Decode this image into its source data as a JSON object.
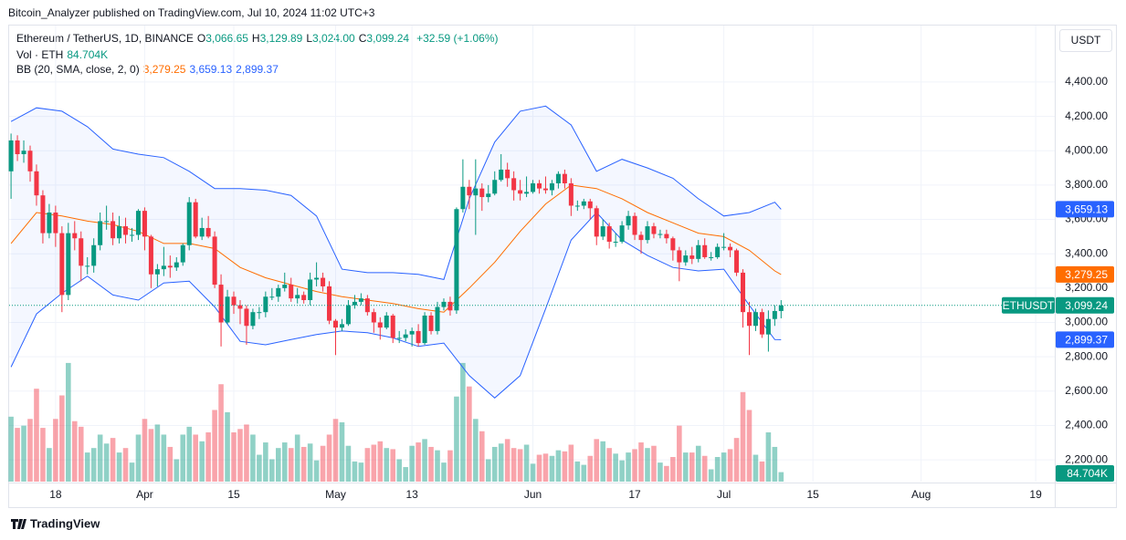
{
  "header": {
    "published": "Bitcoin_Analyzer published on TradingView.com, Jul 10, 2024 11:02 UTC+3",
    "footer": "TradingView"
  },
  "chart_data": {
    "type": "candlestick",
    "title": "Ethereum / TetherUS, 1D, BINANCE",
    "ohlc_legend": [
      {
        "label": "O",
        "value": "3,066.65"
      },
      {
        "label": "H",
        "value": "3,129.89"
      },
      {
        "label": "L",
        "value": "3,024.00"
      },
      {
        "label": "C",
        "value": "3,099.24"
      }
    ],
    "change": "+32.59 (+1.06%)",
    "currency": "USDT",
    "symbol": "ETHUSDT",
    "up_color": "#089981",
    "down_color": "#f23645",
    "open": [
      3880,
      4060,
      3980,
      4000,
      3880,
      3740,
      3520,
      3640,
      3520,
      3160,
      3520,
      3490,
      3330,
      3330,
      3450,
      3590,
      3590,
      3490,
      3560,
      3510,
      3510,
      3650,
      3500,
      3280,
      3310,
      3330,
      3320,
      3350,
      3450,
      3700,
      3500,
      3550,
      3500,
      3220,
      3000,
      3150,
      3100,
      3080,
      2980,
      3060,
      3060,
      3150,
      3150,
      3200,
      3220,
      3140,
      3160,
      3130,
      3250,
      3260,
      3210,
      3010,
      2970,
      2990,
      3100,
      3120,
      3140,
      3060,
      3000,
      2970,
      3040,
      2910,
      2910,
      2930,
      2950,
      2880,
      3040,
      2950,
      3090,
      3120,
      3070,
      3660,
      3790,
      3740,
      3780,
      3730,
      3750,
      3830,
      3890,
      3840,
      3770,
      3750,
      3760,
      3810,
      3780,
      3770,
      3810,
      3865,
      3810,
      3680,
      3680,
      3705,
      3665,
      3500,
      3560,
      3470,
      3470,
      3565,
      3620,
      3510,
      3480,
      3560,
      3515,
      3515,
      3490,
      3420,
      3350,
      3390,
      3370,
      3450,
      3380,
      3380,
      3440,
      3440,
      3420,
      3290,
      3060,
      2980,
      3060,
      2930,
      3020,
      3066.65
    ],
    "high": [
      4100,
      4090,
      4060,
      4030,
      3920,
      3770,
      3690,
      3680,
      3560,
      3580,
      3590,
      3530,
      3380,
      3490,
      3640,
      3680,
      3640,
      3620,
      3610,
      3550,
      3660,
      3670,
      3510,
      3340,
      3440,
      3390,
      3380,
      3460,
      3730,
      3720,
      3610,
      3620,
      3530,
      3280,
      3190,
      3180,
      3130,
      3100,
      3080,
      3090,
      3180,
      3200,
      3220,
      3290,
      3260,
      3200,
      3180,
      3290,
      3350,
      3290,
      3240,
      3020,
      3020,
      3130,
      3160,
      3170,
      3160,
      3080,
      3030,
      3060,
      3050,
      2950,
      2960,
      2970,
      2990,
      3060,
      3060,
      3120,
      3140,
      3150,
      3670,
      3950,
      3830,
      3950,
      3810,
      3800,
      3880,
      3980,
      3930,
      3880,
      3830,
      3850,
      3830,
      3830,
      3850,
      3830,
      3880,
      3890,
      3840,
      3710,
      3720,
      3720,
      3680,
      3600,
      3580,
      3520,
      3590,
      3650,
      3640,
      3530,
      3590,
      3580,
      3540,
      3540,
      3500,
      3440,
      3420,
      3440,
      3480,
      3490,
      3410,
      3460,
      3520,
      3460,
      3430,
      3310,
      3120,
      3080,
      3080,
      3070,
      3100,
      3129.89
    ],
    "low": [
      3720,
      3940,
      3930,
      3820,
      3680,
      3460,
      3490,
      3440,
      3060,
      3130,
      3420,
      3240,
      3280,
      3290,
      3420,
      3540,
      3450,
      3460,
      3460,
      3470,
      3480,
      3420,
      3200,
      3210,
      3270,
      3260,
      3300,
      3330,
      3420,
      3490,
      3480,
      3490,
      3200,
      2860,
      2990,
      3050,
      2990,
      2870,
      2960,
      3020,
      3030,
      3130,
      3120,
      3180,
      3120,
      3110,
      3110,
      3100,
      3210,
      3180,
      2990,
      2810,
      2950,
      2980,
      3080,
      3100,
      3040,
      2940,
      2900,
      2960,
      2880,
      2880,
      2890,
      2860,
      2860,
      2870,
      2930,
      2930,
      3070,
      3040,
      3050,
      3640,
      3660,
      3510,
      3650,
      3700,
      3740,
      3820,
      3790,
      3710,
      3710,
      3730,
      3750,
      3750,
      3750,
      3740,
      3780,
      3780,
      3620,
      3650,
      3660,
      3600,
      3450,
      3480,
      3430,
      3440,
      3460,
      3540,
      3480,
      3400,
      3460,
      3490,
      3490,
      3460,
      3360,
      3240,
      3330,
      3340,
      3350,
      3370,
      3360,
      3370,
      3420,
      3380,
      3270,
      2970,
      2810,
      2950,
      2910,
      2830,
      2980,
      3024
    ],
    "close": [
      4060,
      3980,
      4000,
      3880,
      3740,
      3520,
      3640,
      3520,
      3160,
      3520,
      3490,
      3330,
      3330,
      3450,
      3590,
      3590,
      3490,
      3560,
      3510,
      3510,
      3650,
      3500,
      3280,
      3310,
      3330,
      3320,
      3350,
      3450,
      3700,
      3500,
      3550,
      3500,
      3220,
      3000,
      3150,
      3100,
      3080,
      2980,
      3060,
      3060,
      3150,
      3150,
      3200,
      3220,
      3140,
      3160,
      3130,
      3250,
      3260,
      3210,
      3010,
      2970,
      2990,
      3100,
      3120,
      3140,
      3060,
      3000,
      2970,
      3040,
      2910,
      2910,
      2930,
      2950,
      2880,
      3040,
      2950,
      3090,
      3120,
      3070,
      3660,
      3790,
      3740,
      3780,
      3730,
      3750,
      3830,
      3890,
      3840,
      3770,
      3750,
      3760,
      3810,
      3780,
      3770,
      3810,
      3865,
      3810,
      3680,
      3680,
      3705,
      3665,
      3500,
      3560,
      3470,
      3470,
      3565,
      3620,
      3510,
      3480,
      3560,
      3515,
      3515,
      3490,
      3420,
      3350,
      3390,
      3370,
      3450,
      3380,
      3380,
      3440,
      3440,
      3420,
      3290,
      3060,
      2980,
      3060,
      2930,
      3020,
      3066.65,
      3099.24
    ],
    "volume": {
      "name": "Vol · ETH",
      "last_label": "84.704K",
      "ylim": [
        0,
        1100
      ],
      "values": [
        580,
        480,
        500,
        560,
        830,
        480,
        300,
        560,
        770,
        1060,
        540,
        490,
        260,
        300,
        420,
        340,
        390,
        260,
        300,
        170,
        420,
        560,
        470,
        510,
        420,
        310,
        200,
        420,
        490,
        420,
        360,
        440,
        640,
        870,
        620,
        440,
        470,
        510,
        420,
        240,
        350,
        200,
        300,
        350,
        300,
        420,
        310,
        340,
        190,
        320,
        420,
        560,
        530,
        320,
        180,
        170,
        300,
        330,
        360,
        300,
        290,
        200,
        130,
        320,
        350,
        380,
        310,
        280,
        170,
        280,
        760,
        1060,
        850,
        560,
        450,
        200,
        310,
        340,
        380,
        300,
        290,
        330,
        160,
        240,
        250,
        230,
        280,
        270,
        330,
        180,
        150,
        230,
        380,
        360,
        300,
        250,
        190,
        260,
        290,
        350,
        300,
        320,
        170,
        140,
        220,
        500,
        260,
        260,
        320,
        230,
        110,
        220,
        260,
        290,
        390,
        800,
        640,
        240,
        180,
        440,
        310,
        84.704
      ]
    },
    "bb": {
      "name": "BB (20, SMA, close, 2, 0)",
      "upper_color": "#2962ff",
      "middle_color": "#ff6d00",
      "upper_label": "3,659.13",
      "middle_label": "3,279.25",
      "lower_label": "2,899.37",
      "x": [
        0,
        4,
        8,
        12,
        16,
        20,
        24,
        28,
        32,
        36,
        40,
        44,
        48,
        52,
        56,
        60,
        64,
        68,
        72,
        76,
        80,
        84,
        88,
        92,
        96,
        100,
        104,
        108,
        112,
        116,
        120,
        121
      ],
      "upper": [
        4170,
        4250,
        4230,
        4140,
        4010,
        3980,
        3960,
        3880,
        3780,
        3780,
        3770,
        3740,
        3620,
        3310,
        3290,
        3290,
        3280,
        3250,
        3720,
        4050,
        4230,
        4260,
        4150,
        3880,
        3950,
        3900,
        3840,
        3720,
        3620,
        3640,
        3700,
        3659.13
      ],
      "middle": [
        3460,
        3640,
        3620,
        3590,
        3570,
        3530,
        3460,
        3460,
        3430,
        3320,
        3260,
        3220,
        3180,
        3150,
        3130,
        3110,
        3080,
        3060,
        3200,
        3350,
        3530,
        3690,
        3800,
        3780,
        3720,
        3640,
        3580,
        3520,
        3500,
        3420,
        3300,
        3279.25
      ],
      "lower": [
        2740,
        3050,
        3170,
        3270,
        3160,
        3130,
        3230,
        3240,
        3090,
        2890,
        2870,
        2900,
        2930,
        2950,
        2940,
        2910,
        2860,
        2880,
        2690,
        2560,
        2690,
        3080,
        3480,
        3640,
        3480,
        3390,
        3320,
        3300,
        3310,
        3100,
        2900,
        2899.37
      ]
    },
    "ylim": [
      2073,
      4729
    ],
    "yticks": [
      {
        "value": 2200,
        "label": "2,200.00"
      },
      {
        "value": 2400,
        "label": "2,400.00"
      },
      {
        "value": 2600,
        "label": "2,600.00"
      },
      {
        "value": 2800,
        "label": "2,800.00"
      },
      {
        "value": 3000,
        "label": "3,000.00"
      },
      {
        "value": 3200,
        "label": "3,200.00"
      },
      {
        "value": 3400,
        "label": "3,400.00"
      },
      {
        "value": 3600,
        "label": "3,600.00"
      },
      {
        "value": 3800,
        "label": "3,800.00"
      },
      {
        "value": 4000,
        "label": "4,000.00"
      },
      {
        "value": 4200,
        "label": "4,200.00"
      },
      {
        "value": 4400,
        "label": "4,400.00"
      }
    ],
    "xlim": [
      -0.3,
      164
    ],
    "xticks": [
      {
        "value": 7,
        "label": "18"
      },
      {
        "value": 21,
        "label": "Apr"
      },
      {
        "value": 35,
        "label": "15"
      },
      {
        "value": 51,
        "label": "May"
      },
      {
        "value": 63,
        "label": "13"
      },
      {
        "value": 82,
        "label": "Jun"
      },
      {
        "value": 98,
        "label": "17"
      },
      {
        "value": 112,
        "label": "Jul"
      },
      {
        "value": 126,
        "label": "15"
      },
      {
        "value": 143,
        "label": "Aug"
      },
      {
        "value": 161,
        "label": "19"
      }
    ],
    "grid": true
  }
}
